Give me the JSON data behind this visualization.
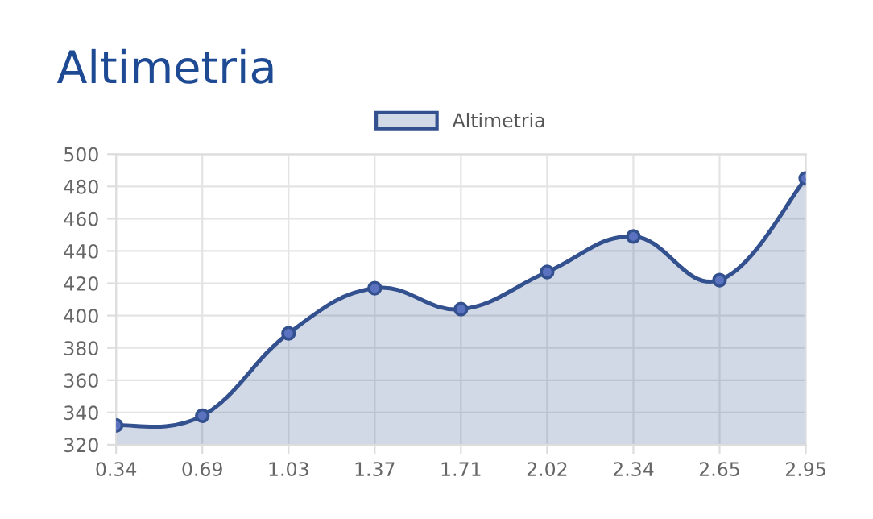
{
  "chart_data": {
    "type": "area",
    "title": "Altimetria",
    "categories": [
      "0.34",
      "0.69",
      "1.03",
      "1.37",
      "1.71",
      "2.02",
      "2.34",
      "2.65",
      "2.95"
    ],
    "series": [
      {
        "name": "Altimetria",
        "color": "#33508f",
        "values": [
          332,
          338,
          389,
          417,
          404,
          427,
          449,
          422,
          485
        ]
      }
    ],
    "ylim": [
      320,
      500
    ],
    "yticks": [
      320,
      340,
      360,
      380,
      400,
      420,
      440,
      460,
      480,
      500
    ],
    "grid": true,
    "legend": "top",
    "marker": "circle",
    "line_style": "solid"
  }
}
